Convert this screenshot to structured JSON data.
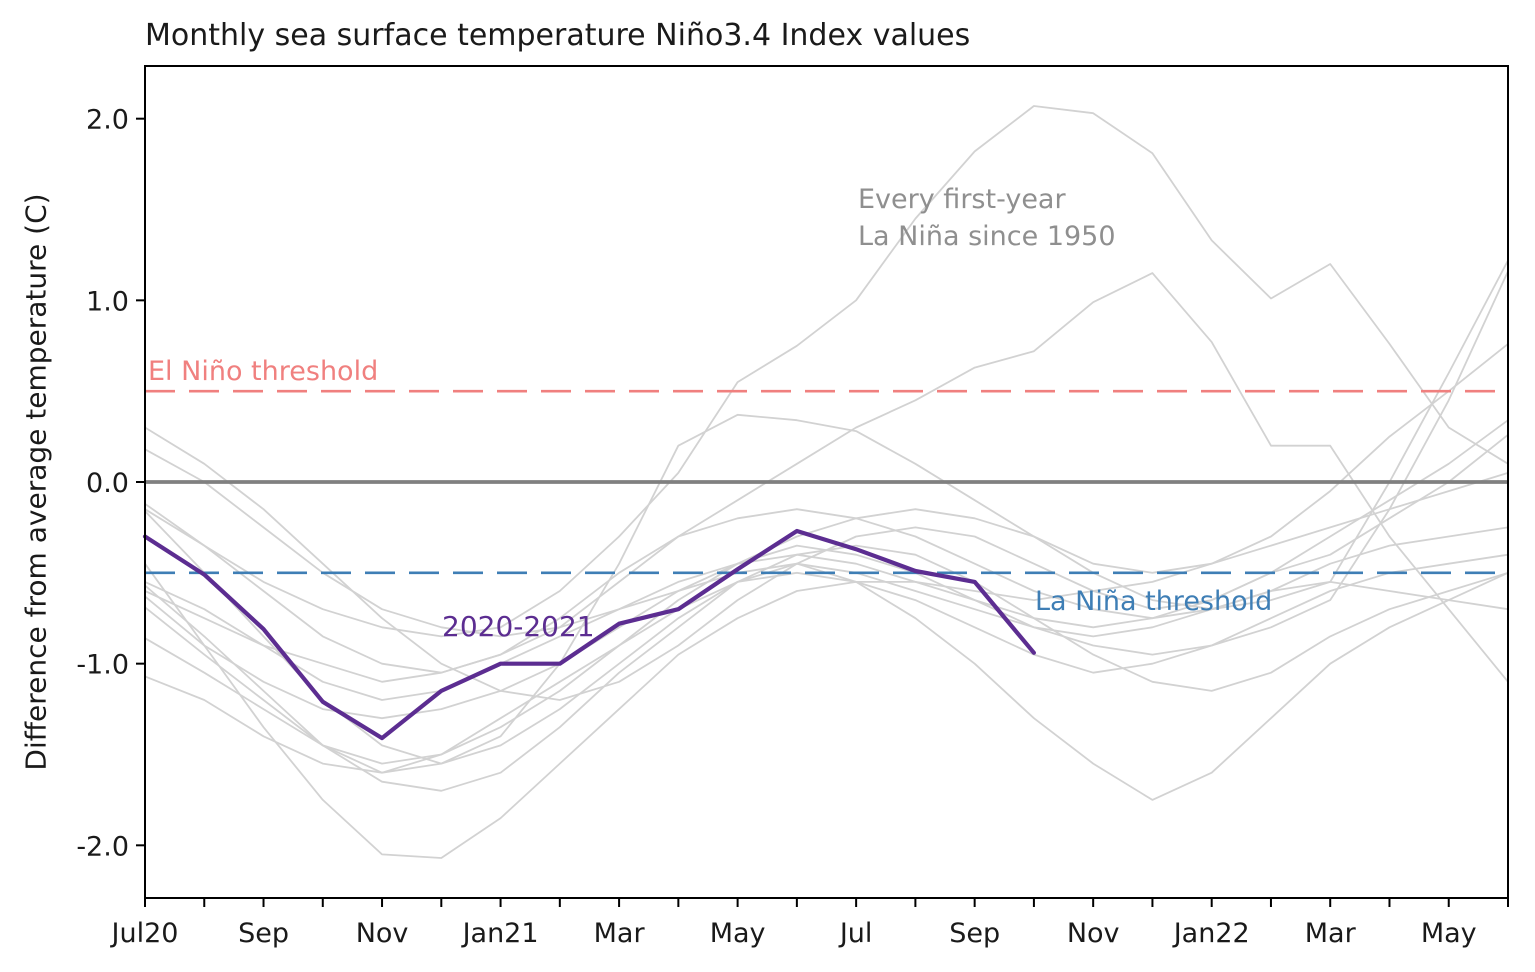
{
  "figure": {
    "title": "Monthly sea surface temperature Niño3.4 Index values",
    "background_color": "#ffffff",
    "text_color": "#1a1a1a"
  },
  "chart_data": {
    "type": "line",
    "title": "Monthly sea surface temperature Niño3.4 Index values",
    "xlabel": "",
    "ylabel": "Difference from average temperature (C)",
    "grid": false,
    "legend": "none (direct line annotations)",
    "x_axis": {
      "unit": "months from Jul 2020 through Jun 2022",
      "range": [
        0,
        23
      ],
      "major_tick_positions": [
        0,
        2,
        4,
        6,
        8,
        10,
        12,
        14,
        16,
        18,
        20,
        22
      ],
      "major_tick_labels": [
        "Jul20",
        "Sep",
        "Nov",
        "Jan21",
        "Mar",
        "May",
        "Jul",
        "Sep",
        "Nov",
        "Jan22",
        "Mar",
        "May"
      ],
      "minor_tick_positions": [
        1,
        3,
        5,
        7,
        9,
        11,
        13,
        15,
        17,
        19,
        21,
        23
      ]
    },
    "y_axis": {
      "range": [
        -2.29,
        2.29
      ],
      "tick_positions": [
        -2.0,
        -1.0,
        0.0,
        1.0,
        2.0
      ],
      "tick_labels": [
        "-2.0",
        "-1.0",
        "0.0",
        "1.0",
        "2.0"
      ]
    },
    "reference_lines": [
      {
        "name": "zero-line",
        "value": 0.0,
        "style": "solid",
        "color": "#808080",
        "width": 3.8
      },
      {
        "name": "el-nino-threshold",
        "value": 0.5,
        "style": "dashed",
        "color": "#f0807f",
        "width": 2.6
      },
      {
        "name": "la-nina-threshold",
        "value": -0.5,
        "style": "dashed",
        "color": "#3e7eb5",
        "width": 2.6
      }
    ],
    "annotations": [
      {
        "name": "el-nino-threshold-label",
        "text": "El Niño threshold",
        "color": "#f0807f"
      },
      {
        "name": "la-nina-threshold-label",
        "text": "La Niña threshold",
        "color": "#3e7eb5"
      },
      {
        "name": "gray-lines-label",
        "text": "Every first-year\nLa Niña since 1950",
        "color": "#8f8f8f"
      },
      {
        "name": "highlight-line-label",
        "text": "2020-2021",
        "color": "#5c2d91"
      }
    ],
    "series": {
      "highlight": {
        "label": "2020-2021",
        "color": "#5c2d91",
        "width": 4.2,
        "start_month": 0,
        "values": [
          -0.3,
          -0.51,
          -0.81,
          -1.21,
          -1.41,
          -1.15,
          -1.0,
          -1.0,
          -0.78,
          -0.7,
          -0.48,
          -0.27,
          -0.37,
          -0.49,
          -0.55,
          -0.94
        ]
      },
      "background": {
        "label": "Every first-year La Niña since 1950",
        "color": "#d2d2d2",
        "width": 1.8,
        "lines": [
          [
            -0.15,
            -0.35,
            -0.55,
            -0.7,
            -0.8,
            -0.85,
            -0.8,
            -0.6,
            -0.3,
            0.05,
            0.55,
            0.75,
            1.0,
            1.45,
            1.82,
            2.07,
            2.03,
            1.81,
            1.33,
            1.01,
            1.2,
            0.76,
            0.3,
            0.1
          ],
          [
            -0.6,
            -0.75,
            -0.9,
            -1.0,
            -1.1,
            -1.05,
            -0.95,
            -0.8,
            -0.55,
            -0.3,
            -0.1,
            0.1,
            0.3,
            0.45,
            0.63,
            0.72,
            0.99,
            1.15,
            0.77,
            0.2,
            0.2,
            -0.3,
            -0.7,
            -1.1
          ],
          [
            -0.45,
            -0.9,
            -1.35,
            -1.75,
            -2.05,
            -2.07,
            -1.85,
            -1.55,
            -1.25,
            -0.95,
            -0.75,
            -0.6,
            -0.55,
            -0.55,
            -0.6,
            -0.65,
            -0.6,
            -0.55,
            -0.45,
            -0.35,
            -0.25,
            -0.15,
            -0.05,
            0.05
          ],
          [
            -0.57,
            -0.85,
            -1.15,
            -1.45,
            -1.65,
            -1.7,
            -1.6,
            -1.35,
            -1.05,
            -0.8,
            -0.55,
            -0.45,
            -0.55,
            -0.75,
            -1.0,
            -1.3,
            -1.55,
            -1.75,
            -1.6,
            -1.3,
            -1.0,
            -0.8,
            -0.65,
            -0.5
          ],
          [
            -0.69,
            -0.95,
            -1.2,
            -1.45,
            -1.6,
            -1.55,
            -1.45,
            -1.25,
            -1.0,
            -0.75,
            -0.55,
            -0.4,
            -0.35,
            -0.4,
            -0.55,
            -0.75,
            -0.95,
            -1.1,
            -1.15,
            -1.05,
            -0.85,
            -0.7,
            -0.6,
            -0.5
          ],
          [
            0.18,
            0.0,
            -0.25,
            -0.5,
            -0.7,
            -0.8,
            -0.85,
            -0.8,
            -0.7,
            -0.55,
            -0.45,
            -0.4,
            -0.45,
            -0.55,
            -0.65,
            -0.75,
            -0.8,
            -0.75,
            -0.65,
            -0.5,
            -0.4,
            -0.2,
            0.0,
            0.26
          ],
          [
            0.3,
            0.1,
            -0.15,
            -0.45,
            -0.75,
            -1.0,
            -1.15,
            -1.2,
            -1.1,
            -0.9,
            -0.65,
            -0.45,
            -0.3,
            -0.25,
            -0.3,
            -0.45,
            -0.6,
            -0.7,
            -0.65,
            -0.5,
            -0.3,
            -0.1,
            0.1,
            0.34
          ],
          [
            -0.12,
            -0.35,
            -0.6,
            -0.85,
            -1.0,
            -1.05,
            -0.95,
            -0.75,
            -0.5,
            -0.3,
            -0.2,
            -0.15,
            -0.2,
            -0.3,
            -0.45,
            -0.6,
            -0.7,
            -0.75,
            -0.7,
            -0.65,
            -0.55,
            0.0,
            0.6,
            1.22
          ],
          [
            -0.63,
            -0.9,
            -1.1,
            -1.25,
            -1.3,
            -1.25,
            -1.15,
            -1.0,
            -0.8,
            -0.6,
            -0.45,
            -0.35,
            -0.4,
            -0.5,
            -0.65,
            -0.8,
            -0.9,
            -0.95,
            -0.9,
            -0.8,
            -0.65,
            -0.15,
            0.45,
            1.16
          ],
          [
            -0.86,
            -1.05,
            -1.25,
            -1.45,
            -1.55,
            -1.5,
            -1.35,
            -1.15,
            -0.9,
            -0.65,
            -0.45,
            -0.3,
            -0.2,
            -0.15,
            -0.2,
            -0.3,
            -0.45,
            -0.5,
            -0.45,
            -0.3,
            -0.05,
            0.25,
            0.5,
            0.76
          ],
          [
            -0.55,
            -0.7,
            -0.9,
            -1.1,
            -1.2,
            -1.15,
            -1.0,
            -0.85,
            -0.7,
            -0.6,
            -0.5,
            -0.45,
            -0.5,
            -0.6,
            -0.7,
            -0.8,
            -0.85,
            -0.8,
            -0.7,
            -0.6,
            -0.55,
            -0.6,
            -0.65,
            -0.7
          ],
          [
            -0.16,
            -0.5,
            -0.85,
            -1.2,
            -1.45,
            -1.55,
            -1.4,
            -1.0,
            -0.45,
            0.2,
            0.37,
            0.34,
            0.28,
            0.1,
            -0.1,
            -0.3,
            -0.5,
            -0.65,
            -0.7,
            -0.6,
            -0.45,
            -0.35,
            -0.3,
            -0.25
          ],
          [
            -1.07,
            -1.2,
            -1.4,
            -1.55,
            -1.6,
            -1.5,
            -1.3,
            -1.1,
            -0.9,
            -0.7,
            -0.55,
            -0.5,
            -0.55,
            -0.65,
            -0.8,
            -0.95,
            -1.05,
            -1.0,
            -0.9,
            -0.75,
            -0.6,
            -0.5,
            -0.45,
            -0.4
          ]
        ]
      }
    }
  }
}
